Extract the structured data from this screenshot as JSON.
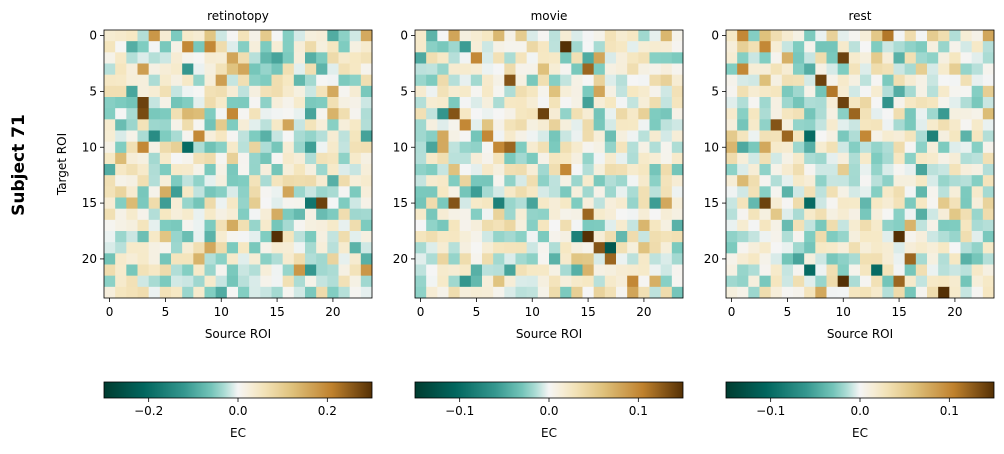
{
  "figure": {
    "row_label": "Subject 71"
  },
  "chart_data": [
    {
      "type": "heatmap",
      "title": "retinotopy",
      "xlabel": "Source ROI",
      "ylabel": "Target ROI",
      "matrix_size": 24,
      "xticks": [
        0,
        5,
        10,
        15,
        20
      ],
      "yticks": [
        0,
        5,
        10,
        15,
        20
      ],
      "colormap": "BrBG_r",
      "colorbar": {
        "label": "EC",
        "range": [
          -0.3,
          0.3
        ],
        "ticks": [
          -0.2,
          0.0,
          0.2
        ],
        "tick_labels": [
          "−0.2",
          "0.0",
          "0.2"
        ]
      },
      "strong_values": [
        {
          "target": 0,
          "source": 4,
          "value": 0.18
        },
        {
          "target": 1,
          "source": 7,
          "value": 0.2
        },
        {
          "target": 1,
          "source": 9,
          "value": 0.2
        },
        {
          "target": 2,
          "source": 11,
          "value": 0.16
        },
        {
          "target": 3,
          "source": 3,
          "value": 0.17
        },
        {
          "target": 3,
          "source": 7,
          "value": -0.12
        },
        {
          "target": 4,
          "source": 10,
          "value": 0.17
        },
        {
          "target": 6,
          "source": 3,
          "value": 0.28
        },
        {
          "target": 7,
          "source": 3,
          "value": 0.27
        },
        {
          "target": 7,
          "source": 11,
          "value": 0.2
        },
        {
          "target": 9,
          "source": 4,
          "value": -0.14
        },
        {
          "target": 9,
          "source": 8,
          "value": 0.2
        },
        {
          "target": 10,
          "source": 7,
          "value": -0.2
        },
        {
          "target": 10,
          "source": 3,
          "value": 0.2
        },
        {
          "target": 10,
          "source": 18,
          "value": -0.11
        },
        {
          "target": 14,
          "source": 16,
          "value": 0.16
        },
        {
          "target": 15,
          "source": 18,
          "value": -0.18
        },
        {
          "target": 15,
          "source": 19,
          "value": 0.28
        },
        {
          "target": 16,
          "source": 15,
          "value": 0.15
        },
        {
          "target": 18,
          "source": 15,
          "value": 0.3
        },
        {
          "target": 21,
          "source": 17,
          "value": 0.18
        },
        {
          "target": 21,
          "source": 18,
          "value": -0.12
        },
        {
          "target": 21,
          "source": 23,
          "value": 0.18
        },
        {
          "target": 20,
          "source": 8,
          "value": 0.14
        }
      ]
    },
    {
      "type": "heatmap",
      "title": "movie",
      "xlabel": "Source ROI",
      "ylabel": "",
      "matrix_size": 24,
      "xticks": [
        0,
        5,
        10,
        15,
        20
      ],
      "yticks": [
        0,
        5,
        10,
        15,
        20
      ],
      "colormap": "BrBG_r",
      "colorbar": {
        "label": "EC",
        "range": [
          -0.15,
          0.15
        ],
        "ticks": [
          -0.1,
          0.0,
          0.1
        ],
        "tick_labels": [
          "−0.1",
          "0.0",
          "0.1"
        ]
      },
      "strong_values": [
        {
          "target": 0,
          "source": 3,
          "value": 0.08
        },
        {
          "target": 1,
          "source": 13,
          "value": 0.15
        },
        {
          "target": 2,
          "source": 5,
          "value": 0.1
        },
        {
          "target": 3,
          "source": 15,
          "value": 0.12
        },
        {
          "target": 4,
          "source": 8,
          "value": 0.13
        },
        {
          "target": 5,
          "source": 16,
          "value": 0.08
        },
        {
          "target": 7,
          "source": 3,
          "value": 0.13
        },
        {
          "target": 7,
          "source": 11,
          "value": 0.14
        },
        {
          "target": 8,
          "source": 4,
          "value": 0.1
        },
        {
          "target": 9,
          "source": 6,
          "value": 0.1
        },
        {
          "target": 10,
          "source": 7,
          "value": 0.1
        },
        {
          "target": 10,
          "source": 8,
          "value": 0.12
        },
        {
          "target": 12,
          "source": 13,
          "value": 0.1
        },
        {
          "target": 15,
          "source": 3,
          "value": 0.13
        },
        {
          "target": 15,
          "source": 7,
          "value": -0.08
        },
        {
          "target": 16,
          "source": 15,
          "value": 0.12
        },
        {
          "target": 18,
          "source": 14,
          "value": -0.08
        },
        {
          "target": 18,
          "source": 15,
          "value": 0.15
        },
        {
          "target": 19,
          "source": 16,
          "value": 0.13
        },
        {
          "target": 19,
          "source": 17,
          "value": -0.12
        },
        {
          "target": 20,
          "source": 17,
          "value": 0.12
        },
        {
          "target": 22,
          "source": 19,
          "value": 0.1
        },
        {
          "target": 23,
          "source": 19,
          "value": 0.08
        }
      ]
    },
    {
      "type": "heatmap",
      "title": "rest",
      "xlabel": "Source ROI",
      "ylabel": "",
      "matrix_size": 24,
      "xticks": [
        0,
        5,
        10,
        15,
        20
      ],
      "yticks": [
        0,
        5,
        10,
        15,
        20
      ],
      "colormap": "BrBG_r",
      "colorbar": {
        "label": "EC",
        "range": [
          -0.15,
          0.15
        ],
        "ticks": [
          -0.1,
          0.0,
          0.1
        ],
        "tick_labels": [
          "−0.1",
          "0.0",
          "0.1"
        ]
      },
      "strong_values": [
        {
          "target": 0,
          "source": 1,
          "value": 0.1
        },
        {
          "target": 0,
          "source": 14,
          "value": 0.11
        },
        {
          "target": 1,
          "source": 3,
          "value": 0.1
        },
        {
          "target": 2,
          "source": 10,
          "value": 0.14
        },
        {
          "target": 3,
          "source": 1,
          "value": 0.1
        },
        {
          "target": 4,
          "source": 8,
          "value": 0.14
        },
        {
          "target": 5,
          "source": 9,
          "value": 0.11
        },
        {
          "target": 6,
          "source": 10,
          "value": 0.14
        },
        {
          "target": 7,
          "source": 11,
          "value": 0.12
        },
        {
          "target": 8,
          "source": 4,
          "value": 0.13
        },
        {
          "target": 9,
          "source": 5,
          "value": 0.12
        },
        {
          "target": 9,
          "source": 7,
          "value": -0.1
        },
        {
          "target": 9,
          "source": 12,
          "value": 0.1
        },
        {
          "target": 9,
          "source": 18,
          "value": -0.08
        },
        {
          "target": 15,
          "source": 3,
          "value": 0.14
        },
        {
          "target": 15,
          "source": 7,
          "value": -0.1
        },
        {
          "target": 18,
          "source": 15,
          "value": 0.15
        },
        {
          "target": 20,
          "source": 16,
          "value": 0.12
        },
        {
          "target": 21,
          "source": 7,
          "value": -0.1
        },
        {
          "target": 21,
          "source": 13,
          "value": -0.1
        },
        {
          "target": 22,
          "source": 10,
          "value": 0.15
        },
        {
          "target": 22,
          "source": 15,
          "value": 0.12
        },
        {
          "target": 23,
          "source": 19,
          "value": 0.15
        }
      ]
    }
  ]
}
